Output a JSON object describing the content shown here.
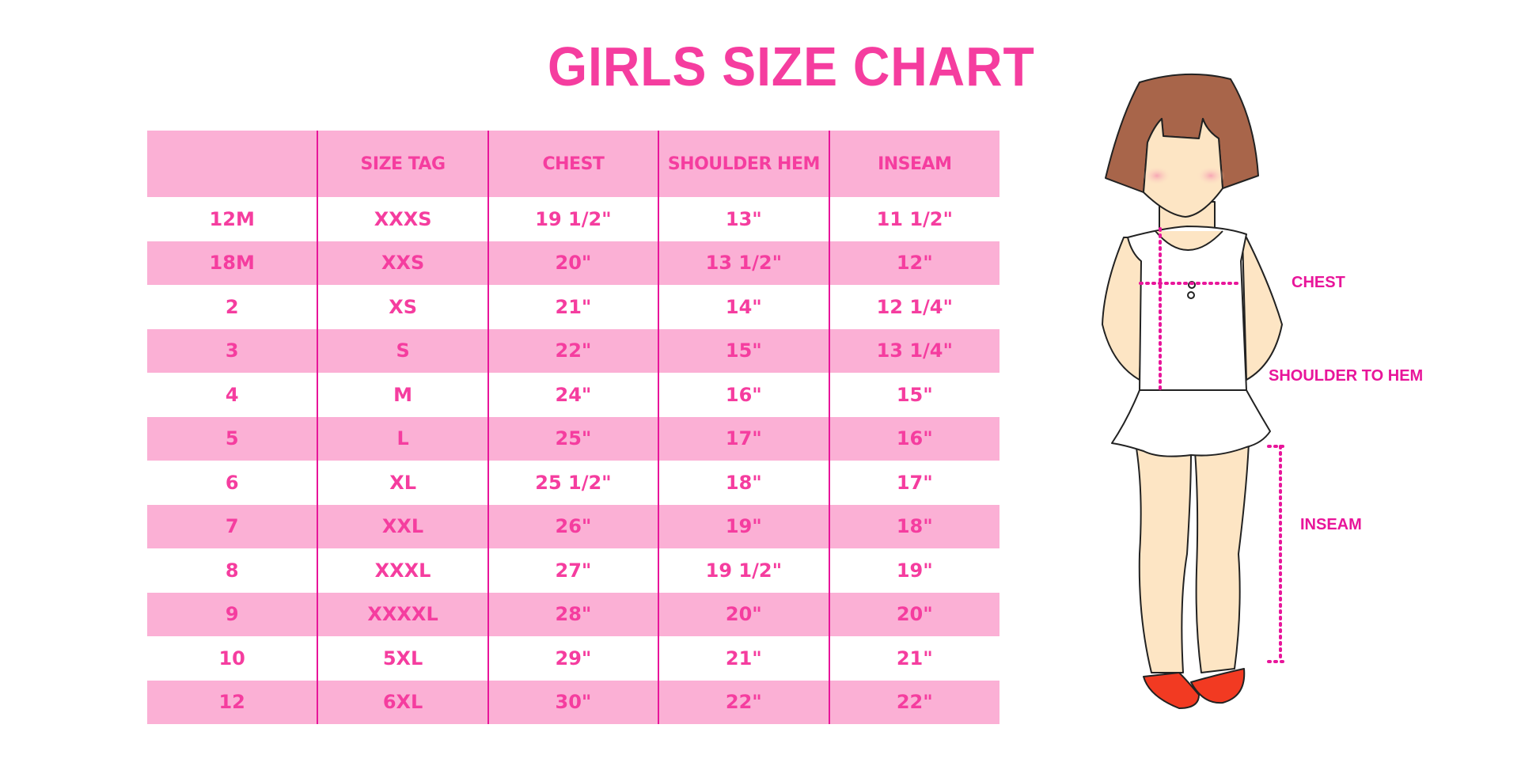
{
  "title": "GIRLS SIZE CHART",
  "table": {
    "headers": [
      "",
      "SIZE TAG",
      "CHEST",
      "SHOULDER HEM",
      "INSEAM"
    ],
    "rows": [
      [
        "12M",
        "XXXS",
        "19 1/2\"",
        "13\"",
        "11 1/2\""
      ],
      [
        "18M",
        "XXS",
        "20\"",
        "13 1/2\"",
        "12\""
      ],
      [
        "2",
        "XS",
        "21\"",
        "14\"",
        "12 1/4\""
      ],
      [
        "3",
        "S",
        "22\"",
        "15\"",
        "13 1/4\""
      ],
      [
        "4",
        "M",
        "24\"",
        "16\"",
        "15\""
      ],
      [
        "5",
        "L",
        "25\"",
        "17\"",
        "16\""
      ],
      [
        "6",
        "XL",
        "25 1/2\"",
        "18\"",
        "17\""
      ],
      [
        "7",
        "XXL",
        "26\"",
        "19\"",
        "18\""
      ],
      [
        "8",
        "XXXL",
        "27\"",
        "19 1/2\"",
        "19\""
      ],
      [
        "9",
        "XXXXL",
        "28\"",
        "20\"",
        "20\""
      ],
      [
        "10",
        "5XL",
        "29\"",
        "21\"",
        "21\""
      ],
      [
        "12",
        "6XL",
        "30\"",
        "22\"",
        "22\""
      ]
    ]
  },
  "figure": {
    "labels": {
      "chest": "CHEST",
      "shoulder_to_hem": "SHOULDER TO HEM",
      "inseam": "INSEAM"
    }
  },
  "colors": {
    "accent": "#f53d9f",
    "band": "#fbb0d5",
    "divider": "#e8159a",
    "hair": "#a8654a",
    "skin": "#fde5c4",
    "shoes": "#f23a22"
  }
}
